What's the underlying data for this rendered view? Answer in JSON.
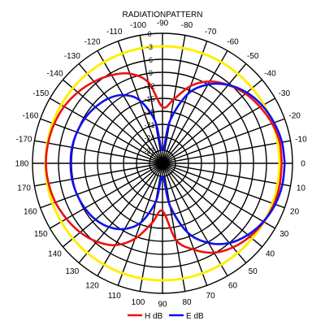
{
  "chart_data": {
    "type": "polar",
    "title": "RADIATIONPATTERN",
    "angle_labels": [
      {
        "deg": 0,
        "label": "0"
      },
      {
        "deg": 10,
        "label": "-10"
      },
      {
        "deg": 20,
        "label": "-20"
      },
      {
        "deg": 30,
        "label": "-30"
      },
      {
        "deg": 40,
        "label": "-40"
      },
      {
        "deg": 50,
        "label": "-50"
      },
      {
        "deg": 60,
        "label": "-60"
      },
      {
        "deg": 70,
        "label": "-70"
      },
      {
        "deg": 80,
        "label": "-80"
      },
      {
        "deg": 90,
        "label": "-90"
      },
      {
        "deg": 100,
        "label": "-100"
      },
      {
        "deg": 110,
        "label": "-110"
      },
      {
        "deg": 120,
        "label": "-120"
      },
      {
        "deg": 130,
        "label": "-130"
      },
      {
        "deg": 140,
        "label": "-140"
      },
      {
        "deg": 150,
        "label": "-150"
      },
      {
        "deg": 160,
        "label": "-160"
      },
      {
        "deg": 170,
        "label": "-170"
      },
      {
        "deg": 180,
        "label": "180"
      },
      {
        "deg": 190,
        "label": "170"
      },
      {
        "deg": 200,
        "label": "160"
      },
      {
        "deg": 210,
        "label": "150"
      },
      {
        "deg": 220,
        "label": "140"
      },
      {
        "deg": 230,
        "label": "130"
      },
      {
        "deg": 240,
        "label": "120"
      },
      {
        "deg": 250,
        "label": "110"
      },
      {
        "deg": 260,
        "label": "100"
      },
      {
        "deg": 270,
        "label": "90"
      },
      {
        "deg": 280,
        "label": "80"
      },
      {
        "deg": 290,
        "label": "70"
      },
      {
        "deg": 300,
        "label": "60"
      },
      {
        "deg": 310,
        "label": "50"
      },
      {
        "deg": 320,
        "label": "40"
      },
      {
        "deg": 330,
        "label": "30"
      },
      {
        "deg": 340,
        "label": "20"
      },
      {
        "deg": 350,
        "label": "10"
      }
    ],
    "radial_ticks": [
      "0",
      "-3",
      "-6",
      "-9",
      "-12",
      "-15",
      "-18",
      "-21",
      "-24",
      "-27"
    ],
    "radial_range_db": [
      -30,
      0
    ],
    "reference_circle_db": -3,
    "reference_circle_color": "#ffee00",
    "grid": true,
    "legend_position": "bottom",
    "series": [
      {
        "name": "H dB",
        "color": "#ee1111",
        "points_deg_db": [
          [
            0,
            -2.5
          ],
          [
            10,
            -2.5
          ],
          [
            20,
            -3.1
          ],
          [
            30,
            -4.0
          ],
          [
            40,
            -5.0
          ],
          [
            50,
            -6.4
          ],
          [
            60,
            -8.2
          ],
          [
            70,
            -11
          ],
          [
            80,
            -15
          ],
          [
            90,
            -17
          ],
          [
            100,
            -11
          ],
          [
            110,
            -8.0
          ],
          [
            120,
            -6.5
          ],
          [
            130,
            -5.4
          ],
          [
            140,
            -4.5
          ],
          [
            150,
            -3.8
          ],
          [
            160,
            -3.4
          ],
          [
            170,
            -3.2
          ],
          [
            180,
            -3.1
          ],
          [
            190,
            -3.3
          ],
          [
            200,
            -3.7
          ],
          [
            210,
            -4.4
          ],
          [
            220,
            -5.2
          ],
          [
            230,
            -6.4
          ],
          [
            240,
            -8.2
          ],
          [
            250,
            -11.5
          ],
          [
            260,
            -16
          ],
          [
            270,
            -19
          ],
          [
            280,
            -12
          ],
          [
            290,
            -8.8
          ],
          [
            300,
            -6.2
          ],
          [
            310,
            -4.7
          ],
          [
            320,
            -3.7
          ],
          [
            330,
            -3.0
          ],
          [
            340,
            -2.6
          ],
          [
            350,
            -2.5
          ],
          [
            360,
            -2.5
          ]
        ]
      },
      {
        "name": "E dB",
        "color": "#1111ee",
        "points_deg_db": [
          [
            0,
            -1.8
          ],
          [
            10,
            -2.0
          ],
          [
            20,
            -2.6
          ],
          [
            30,
            -3.4
          ],
          [
            40,
            -4.6
          ],
          [
            50,
            -6.4
          ],
          [
            60,
            -9.0
          ],
          [
            70,
            -13
          ],
          [
            80,
            -20
          ],
          [
            90,
            -27
          ],
          [
            100,
            -20
          ],
          [
            110,
            -14.5
          ],
          [
            120,
            -11.8
          ],
          [
            130,
            -10.5
          ],
          [
            140,
            -9.8
          ],
          [
            150,
            -9.3
          ],
          [
            160,
            -9.0
          ],
          [
            170,
            -8.8
          ],
          [
            180,
            -8.8
          ],
          [
            190,
            -8.8
          ],
          [
            200,
            -9.0
          ],
          [
            210,
            -9.3
          ],
          [
            220,
            -9.8
          ],
          [
            230,
            -10.8
          ],
          [
            240,
            -12.5
          ],
          [
            250,
            -15.5
          ],
          [
            260,
            -21
          ],
          [
            270,
            -27
          ],
          [
            280,
            -20
          ],
          [
            290,
            -13
          ],
          [
            300,
            -8.8
          ],
          [
            310,
            -6.0
          ],
          [
            320,
            -4.3
          ],
          [
            330,
            -3.1
          ],
          [
            340,
            -2.3
          ],
          [
            350,
            -1.9
          ],
          [
            360,
            -1.8
          ]
        ]
      }
    ]
  }
}
